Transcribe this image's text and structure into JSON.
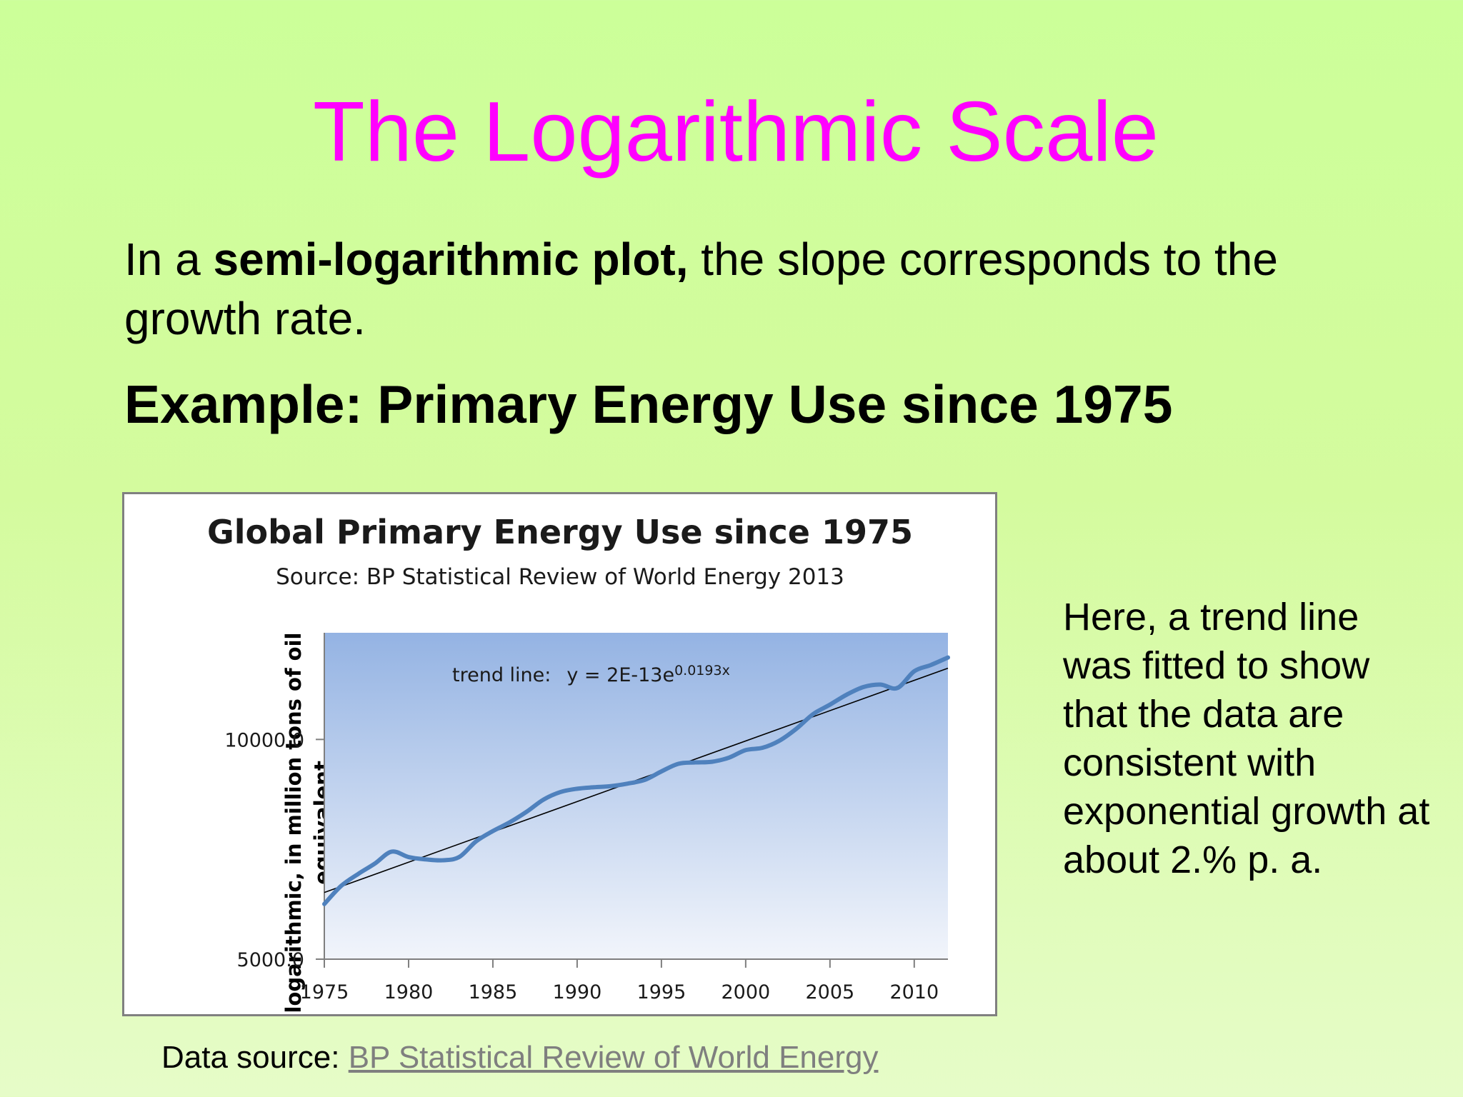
{
  "slide": {
    "title": "The Logarithmic Scale",
    "intro_prefix": "In a ",
    "intro_bold": "semi-logarithmic plot,",
    "intro_suffix": " the slope corresponds to the growth rate.",
    "example_heading": "Example: Primary Energy Use since 1975",
    "side_note": "Here, a trend line was fitted to show that the data are consistent with exponential growth at about 2.% p. a.",
    "data_source_label": "Data source: ",
    "data_source_link": "BP Statistical Review of World Energy"
  },
  "chart_data": {
    "type": "line",
    "title": "Global Primary Energy Use since 1975",
    "subtitle": "Source: BP Statistical Review of World Energy 2013",
    "ylabel": "logarithmic, in million tons of oil equivalent",
    "xlabel": "",
    "y_scale": "log",
    "xlim": [
      1975,
      2012
    ],
    "ylim": [
      5000,
      14000
    ],
    "x_ticks": [
      "1975",
      "1980",
      "1985",
      "1990",
      "1995",
      "2000",
      "2005",
      "2010"
    ],
    "y_ticks": [
      "10000.0",
      "5000.0"
    ],
    "y_tick_values": [
      10000,
      5000
    ],
    "trend_label": "trend line:",
    "trend_equation": "y = 2E-13e",
    "trend_exponent": "0.0193x",
    "trend_points": [
      [
        1975,
        6170
      ],
      [
        2012,
        12520
      ]
    ],
    "series": [
      {
        "color": "#4f81bd",
        "x": [
          1975,
          1976,
          1977,
          1978,
          1979,
          1980,
          1981,
          1982,
          1983,
          1984,
          1985,
          1986,
          1987,
          1988,
          1989,
          1990,
          1991,
          1992,
          1993,
          1994,
          1995,
          1996,
          1997,
          1998,
          1999,
          2000,
          2001,
          2002,
          2003,
          2004,
          2005,
          2006,
          2007,
          2008,
          2009,
          2010,
          2011,
          2012
        ],
        "y": [
          5950,
          6300,
          6540,
          6760,
          7020,
          6900,
          6850,
          6830,
          6900,
          7250,
          7490,
          7700,
          7960,
          8270,
          8470,
          8560,
          8600,
          8630,
          8700,
          8800,
          9040,
          9260,
          9300,
          9320,
          9440,
          9670,
          9740,
          9960,
          10340,
          10830,
          11160,
          11520,
          11800,
          11890,
          11760,
          12400,
          12650,
          12950
        ]
      }
    ],
    "colors": {
      "plot_top": "#94b3e3",
      "plot_bottom": "#f2f5fb",
      "trend": "#000000",
      "axis": "#7f7f7f"
    }
  }
}
